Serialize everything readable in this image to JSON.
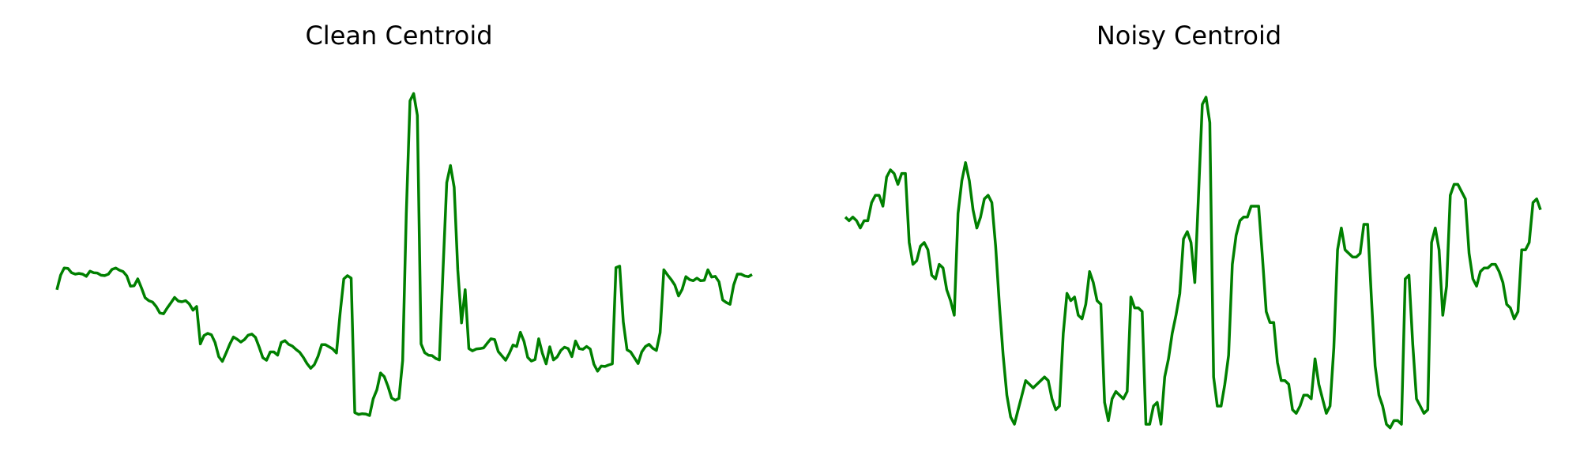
{
  "chart_data": [
    {
      "type": "line",
      "title": "Clean Centroid",
      "xlabel": "",
      "ylabel": "",
      "axes_visible": false,
      "grid": false,
      "color": "#008000",
      "ylim": [
        0,
        1
      ],
      "values": [
        0.42,
        0.46,
        0.48,
        0.479,
        0.467,
        0.463,
        0.465,
        0.463,
        0.457,
        0.471,
        0.467,
        0.466,
        0.46,
        0.459,
        0.463,
        0.476,
        0.48,
        0.474,
        0.47,
        0.458,
        0.43,
        0.431,
        0.45,
        0.425,
        0.398,
        0.39,
        0.386,
        0.374,
        0.356,
        0.354,
        0.37,
        0.384,
        0.399,
        0.389,
        0.387,
        0.39,
        0.381,
        0.364,
        0.374,
        0.271,
        0.294,
        0.3,
        0.296,
        0.275,
        0.236,
        0.223,
        0.246,
        0.27,
        0.29,
        0.284,
        0.276,
        0.283,
        0.295,
        0.298,
        0.289,
        0.262,
        0.233,
        0.226,
        0.249,
        0.249,
        0.24,
        0.275,
        0.28,
        0.27,
        0.265,
        0.256,
        0.248,
        0.234,
        0.217,
        0.204,
        0.214,
        0.237,
        0.269,
        0.269,
        0.263,
        0.257,
        0.246,
        0.355,
        0.45,
        0.459,
        0.452,
        0.082,
        0.077,
        0.079,
        0.078,
        0.074,
        0.12,
        0.145,
        0.191,
        0.181,
        0.155,
        0.122,
        0.116,
        0.121,
        0.225,
        0.63,
        0.94,
        0.96,
        0.9,
        0.271,
        0.247,
        0.24,
        0.239,
        0.231,
        0.227,
        0.48,
        0.715,
        0.762,
        0.702,
        0.474,
        0.329,
        0.42,
        0.258,
        0.252,
        0.257,
        0.258,
        0.26,
        0.273,
        0.285,
        0.283,
        0.25,
        0.238,
        0.226,
        0.245,
        0.268,
        0.264,
        0.303,
        0.278,
        0.234,
        0.224,
        0.228,
        0.285,
        0.245,
        0.216,
        0.263,
        0.227,
        0.235,
        0.253,
        0.262,
        0.258,
        0.236,
        0.279,
        0.258,
        0.256,
        0.264,
        0.257,
        0.215,
        0.196,
        0.21,
        0.209,
        0.213,
        0.216,
        0.481,
        0.485,
        0.331,
        0.255,
        0.249,
        0.233,
        0.217,
        0.249,
        0.264,
        0.27,
        0.259,
        0.253,
        0.302,
        0.475,
        0.461,
        0.448,
        0.433,
        0.403,
        0.421,
        0.456,
        0.448,
        0.445,
        0.452,
        0.445,
        0.446,
        0.475,
        0.455,
        0.457,
        0.442,
        0.392,
        0.385,
        0.38,
        0.433,
        0.463,
        0.463,
        0.458,
        0.456,
        0.462
      ]
    },
    {
      "type": "line",
      "title": "Noisy Centroid",
      "xlabel": "",
      "ylabel": "",
      "axes_visible": false,
      "grid": false,
      "color": "#008000",
      "ylim": [
        0,
        1
      ],
      "values": [
        0.62,
        0.61,
        0.62,
        0.61,
        0.59,
        0.61,
        0.61,
        0.66,
        0.68,
        0.68,
        0.65,
        0.73,
        0.75,
        0.74,
        0.71,
        0.74,
        0.74,
        0.55,
        0.49,
        0.5,
        0.54,
        0.55,
        0.53,
        0.46,
        0.45,
        0.49,
        0.48,
        0.42,
        0.39,
        0.35,
        0.63,
        0.72,
        0.77,
        0.72,
        0.64,
        0.59,
        0.62,
        0.67,
        0.68,
        0.66,
        0.54,
        0.38,
        0.24,
        0.13,
        0.07,
        0.05,
        0.09,
        0.13,
        0.17,
        0.16,
        0.15,
        0.16,
        0.17,
        0.18,
        0.17,
        0.12,
        0.09,
        0.1,
        0.3,
        0.41,
        0.39,
        0.4,
        0.35,
        0.34,
        0.38,
        0.47,
        0.44,
        0.39,
        0.38,
        0.11,
        0.06,
        0.12,
        0.14,
        0.13,
        0.12,
        0.14,
        0.4,
        0.37,
        0.37,
        0.36,
        0.05,
        0.05,
        0.1,
        0.11,
        0.05,
        0.18,
        0.23,
        0.3,
        0.35,
        0.41,
        0.56,
        0.58,
        0.55,
        0.44,
        0.68,
        0.93,
        0.95,
        0.88,
        0.18,
        0.1,
        0.1,
        0.16,
        0.24,
        0.49,
        0.57,
        0.61,
        0.62,
        0.62,
        0.65,
        0.65,
        0.65,
        0.51,
        0.36,
        0.33,
        0.33,
        0.22,
        0.17,
        0.17,
        0.16,
        0.09,
        0.08,
        0.1,
        0.13,
        0.13,
        0.12,
        0.23,
        0.16,
        0.12,
        0.08,
        0.1,
        0.26,
        0.53,
        0.59,
        0.53,
        0.52,
        0.51,
        0.51,
        0.52,
        0.6,
        0.6,
        0.4,
        0.21,
        0.13,
        0.1,
        0.05,
        0.04,
        0.06,
        0.06,
        0.05,
        0.45,
        0.46,
        0.27,
        0.12,
        0.1,
        0.08,
        0.09,
        0.55,
        0.59,
        0.53,
        0.35,
        0.43,
        0.68,
        0.71,
        0.71,
        0.69,
        0.67,
        0.52,
        0.45,
        0.43,
        0.47,
        0.48,
        0.48,
        0.49,
        0.49,
        0.47,
        0.44,
        0.38,
        0.37,
        0.34,
        0.36,
        0.53,
        0.53,
        0.55,
        0.66,
        0.67,
        0.64
      ]
    }
  ]
}
